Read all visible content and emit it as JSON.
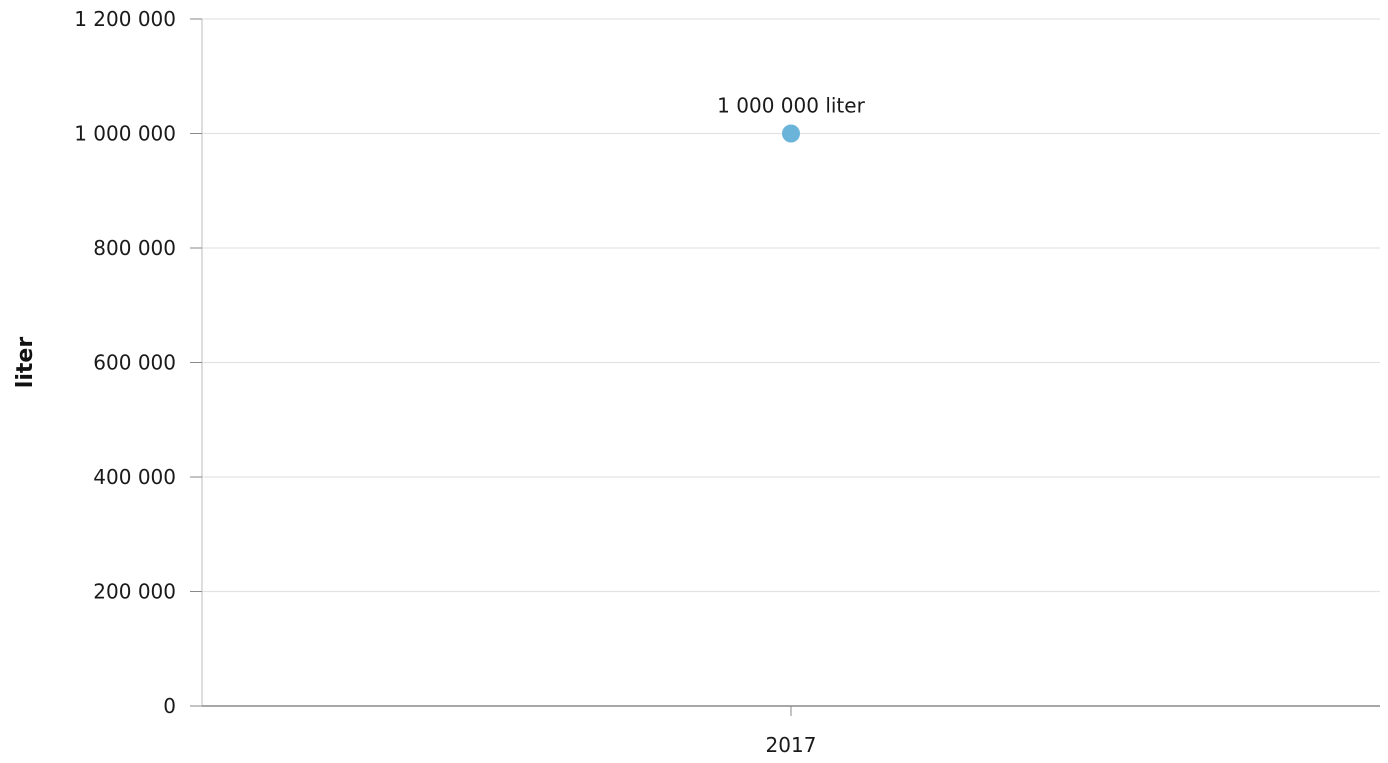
{
  "chart_data": {
    "type": "scatter",
    "title": "",
    "xlabel": "",
    "ylabel": "liter",
    "categories": [
      "2017"
    ],
    "series": [
      {
        "values": [
          1000000
        ],
        "data_labels": [
          "1 000 000 liter"
        ],
        "color": "#6ab4da"
      }
    ],
    "ylim": [
      0,
      1200000
    ],
    "yticks": [
      0,
      200000,
      400000,
      600000,
      800000,
      1000000,
      1200000
    ],
    "ytick_labels": [
      "0",
      "200 000",
      "400 000",
      "600 000",
      "800 000",
      "1 000 000",
      "1 200 000"
    ],
    "grid": true,
    "legend": "none"
  },
  "colors": {
    "grid": "#e3e3e3",
    "axis": "#8a8a8a",
    "point": "#6ab4da"
  }
}
